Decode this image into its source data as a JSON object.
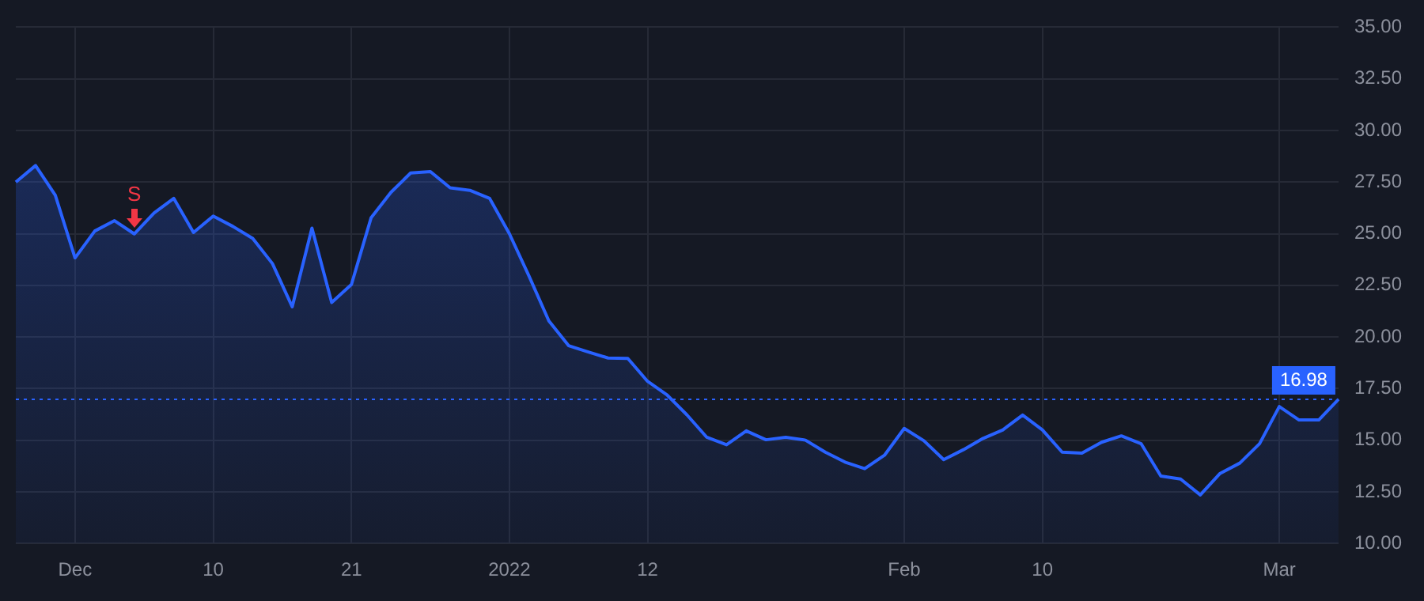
{
  "chart_data": {
    "type": "area",
    "categories": [
      null,
      null,
      null,
      "Dec",
      null,
      null,
      null,
      null,
      null,
      null,
      "10",
      null,
      null,
      null,
      null,
      null,
      null,
      "21",
      null,
      null,
      null,
      null,
      null,
      null,
      null,
      "2022",
      null,
      null,
      null,
      null,
      null,
      null,
      "12",
      null,
      null,
      null,
      null,
      null,
      null,
      null,
      null,
      null,
      null,
      null,
      null,
      "Feb",
      null,
      null,
      null,
      null,
      null,
      null,
      "10",
      null,
      null,
      null,
      null,
      null,
      null,
      null,
      null,
      null,
      null,
      null,
      "Mar",
      null,
      null,
      null
    ],
    "series": [
      {
        "color": "#2962ff",
        "values": [
          27.5,
          28.3,
          26.86,
          23.83,
          25.13,
          25.63,
          24.99,
          26.0,
          26.71,
          25.06,
          25.85,
          25.35,
          24.77,
          23.55,
          21.46,
          25.27,
          21.67,
          22.54,
          25.78,
          27.0,
          27.94,
          28.01,
          27.22,
          27.1,
          26.71,
          25.0,
          22.94,
          20.78,
          19.58,
          19.27,
          18.98,
          18.96,
          17.85,
          17.18,
          16.22,
          15.14,
          14.78,
          15.45,
          15.02,
          15.14,
          15.0,
          14.42,
          13.94,
          13.62,
          14.27,
          15.57,
          14.97,
          14.06,
          14.54,
          15.09,
          15.5,
          16.22,
          15.5,
          14.42,
          14.37,
          14.9,
          15.21,
          14.83,
          13.26,
          13.12,
          12.35,
          13.39,
          13.89,
          14.83,
          16.63,
          15.98,
          15.98,
          16.98
        ]
      }
    ],
    "ylim": [
      10,
      35
    ],
    "yticks": [
      {
        "value": 10,
        "label": "10.00"
      },
      {
        "value": 12.5,
        "label": "12.50"
      },
      {
        "value": 15,
        "label": "15.00"
      },
      {
        "value": 17.5,
        "label": "17.50"
      },
      {
        "value": 20,
        "label": "20.00"
      },
      {
        "value": 22.5,
        "label": "22.50"
      },
      {
        "value": 25,
        "label": "25.00"
      },
      {
        "value": 27.5,
        "label": "27.50"
      },
      {
        "value": 30,
        "label": "30.00"
      },
      {
        "value": 32.5,
        "label": "32.50"
      },
      {
        "value": 35,
        "label": "35.00"
      }
    ],
    "grid": true,
    "legend": false,
    "ref_lines": [
      {
        "axis": "y",
        "value": 16.98,
        "label": "16.98",
        "color": "#2962ff",
        "line_style": "dotted"
      }
    ],
    "annotations": [
      {
        "text": "S",
        "y": 24.99
      }
    ]
  }
}
